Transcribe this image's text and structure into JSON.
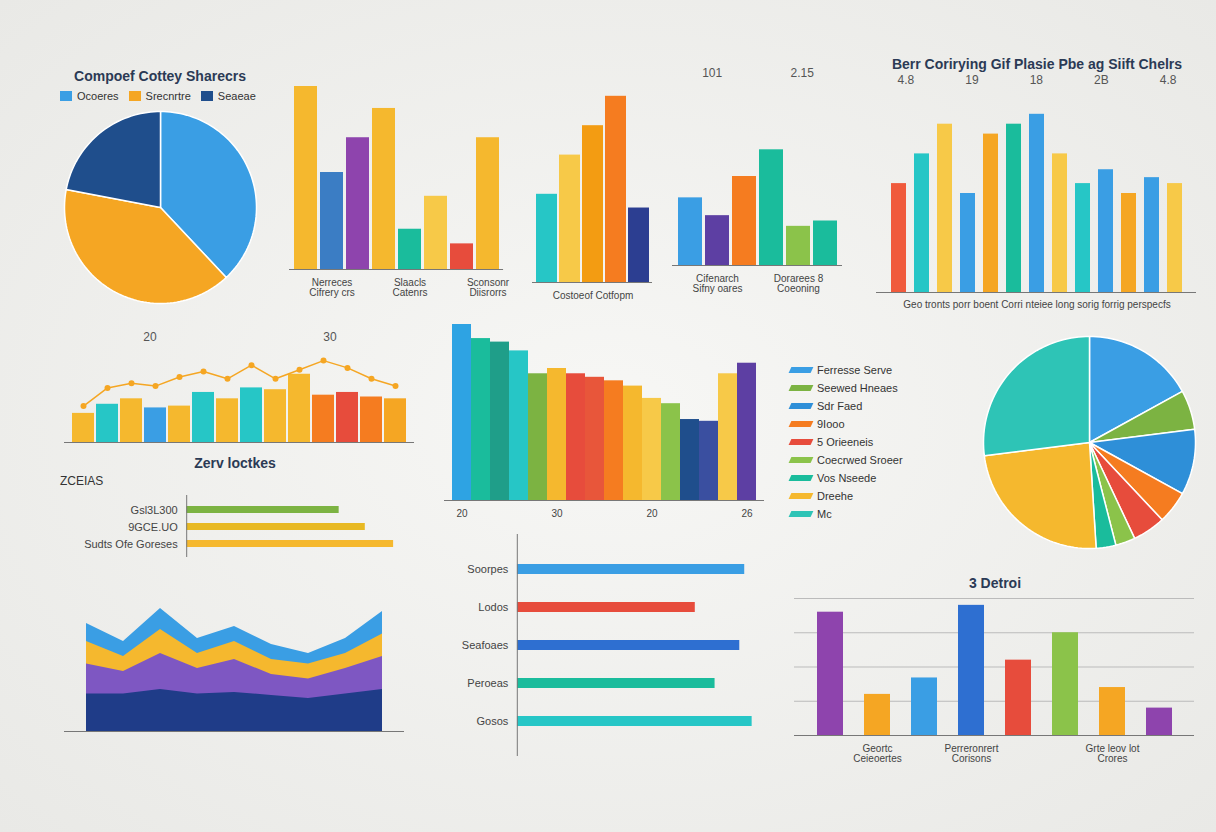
{
  "chart_data": [
    {
      "type": "pie",
      "title": "Compoef Cottey Sharecrs",
      "categories": [
        "Ocoeres",
        "Srecnrtre",
        "Seaeae"
      ],
      "values": [
        38,
        40,
        22
      ],
      "colors": [
        "#3a9ee4",
        "#f5a623",
        "#1f4e8c"
      ],
      "legend": "top"
    },
    {
      "type": "bar",
      "categories": [
        null,
        "Nerreces Cifrery crs",
        null,
        null,
        "Slaacls Catenrs",
        null,
        null,
        "Sconsonr Diisrorrs"
      ],
      "values": [
        100,
        53,
        72,
        88,
        22,
        40,
        14,
        72
      ],
      "colors": [
        "#f5b82e",
        "#3b7dc4",
        "#8e44ad",
        "#f5b82e",
        "#1abc9c",
        "#f7c948",
        "#e74c3c",
        "#f5b82e"
      ],
      "ylim": [
        0,
        100
      ],
      "tick_labels": "x"
    },
    {
      "type": "bar",
      "categories": [
        null,
        null,
        "Costoeof Cotfopm",
        null,
        null
      ],
      "values": [
        45,
        65,
        80,
        95,
        38
      ],
      "colors": [
        "#26c6c6",
        "#f7c948",
        "#f39c12",
        "#f57c20",
        "#2c3e91"
      ],
      "ylim": [
        0,
        100
      ],
      "tick_labels": "x"
    },
    {
      "type": "bar",
      "annotations": [
        "101",
        "2.15"
      ],
      "categories": [
        null,
        "Cifenarch Sifny oares",
        null,
        null,
        "Dorarees 8 Coeoning",
        null
      ],
      "values": [
        38,
        28,
        50,
        65,
        22,
        25
      ],
      "colors": [
        "#3a9ee4",
        "#5d3fa3",
        "#f57c20",
        "#1abc9c",
        "#8bc34a",
        "#1abc9c"
      ],
      "ylim": [
        0,
        100
      ],
      "tick_labels": "x"
    },
    {
      "type": "bar",
      "title": "Berr Corirying Gif Plasie Pbe ag Siift Chelrs",
      "annotations": [
        "4.8",
        "19",
        "18",
        "2B",
        "4.8"
      ],
      "caption": "Geo tronts porr boent Corri nteiee long sorig forrig perspecfs",
      "categories": [
        null,
        null,
        null,
        null,
        null,
        null,
        null,
        null,
        null,
        null,
        null,
        null,
        null
      ],
      "values": [
        55,
        70,
        85,
        50,
        80,
        85,
        90,
        70,
        55,
        62,
        50,
        58,
        55
      ],
      "colors": [
        "#f05a3c",
        "#26c6c6",
        "#f7c948",
        "#3a9ee4",
        "#f5a623",
        "#1abc9c",
        "#3a9ee4",
        "#f7c948",
        "#26c6c6",
        "#3a9ee4",
        "#f5a623",
        "#3a9ee4",
        "#f7c948"
      ],
      "ylim": [
        0,
        100
      ],
      "tick_labels": false
    },
    {
      "type": "bar",
      "annotations": [
        "20",
        "30"
      ],
      "categories": [
        null,
        null,
        null,
        null,
        null,
        null,
        null,
        null,
        null,
        null,
        null,
        null,
        null,
        null
      ],
      "series": [
        {
          "type": "bar",
          "values": [
            32,
            42,
            48,
            38,
            40,
            55,
            48,
            60,
            58,
            75,
            52,
            55,
            50,
            48
          ],
          "colors": [
            "#f5b82e",
            "#26c6c6",
            "#f5b82e",
            "#3a9ee4",
            "#f5b82e",
            "#26c6c6",
            "#f5b82e",
            "#26c6c6",
            "#f5b82e",
            "#f5b82e",
            "#f57c20",
            "#e74c3c",
            "#f57c20",
            "#f5a623"
          ]
        },
        {
          "type": "line",
          "color": "#f5a623",
          "marker": "circle",
          "values": [
            40,
            60,
            65,
            62,
            72,
            78,
            70,
            85,
            70,
            80,
            90,
            82,
            70,
            62
          ]
        }
      ],
      "ylim": [
        0,
        100
      ],
      "tick_labels": false
    },
    {
      "type": "bar",
      "categories": [
        "20",
        null,
        null,
        null,
        null,
        "30",
        null,
        null,
        null,
        null,
        "20",
        null,
        null,
        null,
        null,
        "26"
      ],
      "values": [
        100,
        92,
        90,
        85,
        72,
        75,
        72,
        70,
        68,
        65,
        58,
        55,
        46,
        45,
        72,
        78
      ],
      "colors": [
        "#2ea3e3",
        "#1abc9c",
        "#1f9e89",
        "#26c6c6",
        "#7cb342",
        "#f5b82e",
        "#e74c3c",
        "#e8563a",
        "#f57c20",
        "#f5b82e",
        "#f7c948",
        "#8bc34a",
        "#1f4e8c",
        "#3a4fa0",
        "#f7c948",
        "#5d3fa3"
      ],
      "ylim": [
        0,
        100
      ],
      "tick_labels": "x"
    },
    {
      "type": "pie",
      "categories": [
        "Ferresse Serve",
        "Seewed Hneaes",
        "Sdr Faed",
        "9Iooo",
        "5 Orieeneis",
        "Coecrwed Sroeer",
        "Vos Nseede",
        "Dreehe",
        "Mc"
      ],
      "values": [
        17,
        6,
        10,
        5,
        5,
        3,
        3,
        24,
        27
      ],
      "colors": [
        "#3a9ee4",
        "#7cb342",
        "#2e8fd8",
        "#f57c20",
        "#e74c3c",
        "#8bc34a",
        "#1abc9c",
        "#f5b82e",
        "#2ec4b6"
      ],
      "legend": "left"
    },
    {
      "type": "bar",
      "title": "Zerv loctkes",
      "subtitle": "ZCEIAS",
      "orientation": "horizontal",
      "categories": [
        "Gsl3L300",
        "9GCE.UO",
        "Sudts Ofe Goreses"
      ],
      "values": [
        70,
        82,
        95
      ],
      "colors": [
        "#7cb342",
        "#e8b923",
        "#f5b82e"
      ],
      "xlim": [
        0,
        100
      ],
      "tick_labels": "y"
    },
    {
      "type": "area",
      "categories": [
        null,
        null,
        null,
        null,
        null,
        null,
        null,
        null,
        null
      ],
      "series": [
        {
          "color": "#3a9ee4",
          "values": [
            72,
            60,
            82,
            62,
            70,
            58,
            52,
            62,
            80
          ]
        },
        {
          "color": "#f5b82e",
          "values": [
            60,
            50,
            68,
            52,
            60,
            48,
            45,
            52,
            65
          ]
        },
        {
          "color": "#7e57c2",
          "values": [
            45,
            40,
            52,
            42,
            48,
            38,
            35,
            42,
            50
          ]
        },
        {
          "color": "#1f3c88",
          "values": [
            25,
            25,
            28,
            25,
            26,
            24,
            22,
            25,
            28
          ]
        }
      ],
      "ylim": [
        0,
        100
      ],
      "tick_labels": false
    },
    {
      "type": "bar",
      "orientation": "horizontal",
      "categories": [
        "Soorpes",
        "Lodos",
        "Seafoaes",
        "Peroeas",
        "Gosos"
      ],
      "values": [
        92,
        72,
        90,
        80,
        95
      ],
      "colors": [
        "#3a9ee4",
        "#e74c3c",
        "#2e6fd1",
        "#1abc9c",
        "#26c6c6"
      ],
      "xlim": [
        0,
        100
      ],
      "tick_labels": "y"
    },
    {
      "type": "bar",
      "title": "3 Detroi",
      "categories": [
        null,
        "Geortc Ceieoertes",
        null,
        "Perreronrert Corisons",
        null,
        null,
        "Grte leov lot Crores",
        null
      ],
      "values": [
        90,
        30,
        42,
        95,
        55,
        75,
        35,
        20
      ],
      "colors": [
        "#8e44ad",
        "#f5a623",
        "#3a9ee4",
        "#2e6fd1",
        "#e74c3c",
        "#8bc34a",
        "#f5a623",
        "#8e44ad"
      ],
      "ylim": [
        0,
        100
      ],
      "yticks": [
        0,
        25,
        50,
        75,
        100
      ],
      "grid": true,
      "tick_labels": "x"
    }
  ]
}
